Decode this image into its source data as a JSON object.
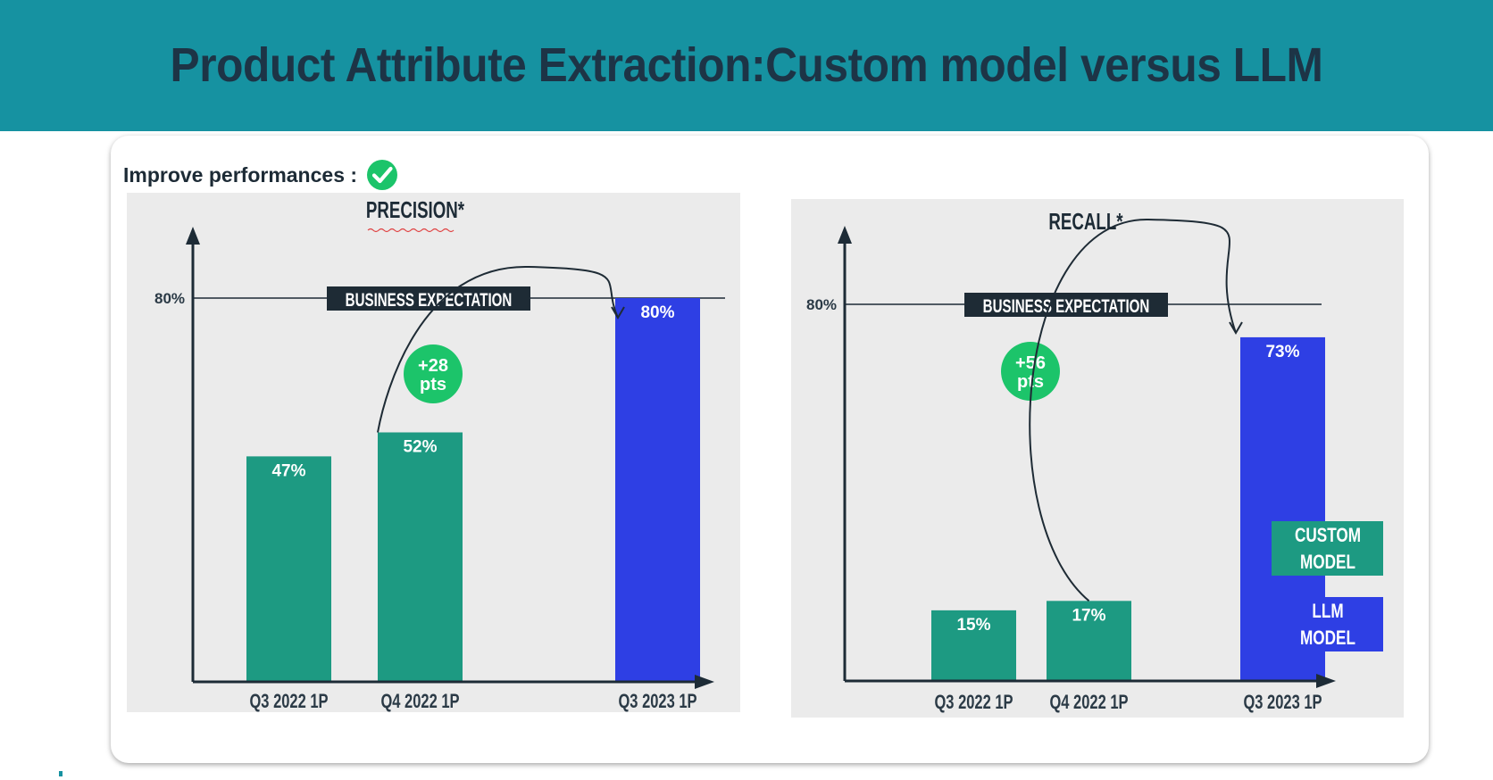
{
  "title": "Product Attribute Extraction:Custom model versus LLM",
  "subtitle": "Improve performances :",
  "icons": {
    "check": "check-circle-icon"
  },
  "colors": {
    "header": "#1692a1",
    "custom_model": "#1d9a82",
    "llm_model": "#2e3fe4",
    "gain_bubble": "#1cc46a",
    "panel_bg": "#ebebeb",
    "axis": "#1d2b36"
  },
  "legend": {
    "custom": "CUSTOM MODEL",
    "llm": "LLM MODEL"
  },
  "chart_data": [
    {
      "type": "bar",
      "title": "PRECISION*",
      "categories": [
        "Q3 2022 1P",
        "Q4 2022 1P",
        "Q3 2023 1P"
      ],
      "values": [
        47,
        52,
        80
      ],
      "value_labels": [
        "47%",
        "52%",
        "80%"
      ],
      "bar_models": [
        "custom",
        "custom",
        "llm"
      ],
      "reference_line": {
        "value": 80,
        "label": "BUSINESS EXPECTATION",
        "tick_label": "80%"
      },
      "gain": {
        "label_line1": "+28",
        "label_line2": "pts",
        "from": "Q4 2022 1P",
        "to": "Q3 2023 1P"
      },
      "ylim": [
        0,
        100
      ]
    },
    {
      "type": "bar",
      "title": "RECALL*",
      "categories": [
        "Q3 2022 1P",
        "Q4 2022 1P",
        "Q3 2023 1P"
      ],
      "values": [
        15,
        17,
        73
      ],
      "value_labels": [
        "15%",
        "17%",
        "73%"
      ],
      "bar_models": [
        "custom",
        "custom",
        "llm"
      ],
      "reference_line": {
        "value": 80,
        "label": "BUSINESS EXPECTATION",
        "tick_label": "80%"
      },
      "gain": {
        "label_line1": "+56",
        "label_line2": "pts",
        "from": "Q4 2022 1P",
        "to": "Q3 2023 1P"
      },
      "ylim": [
        0,
        100
      ],
      "legend_position": "right"
    }
  ]
}
